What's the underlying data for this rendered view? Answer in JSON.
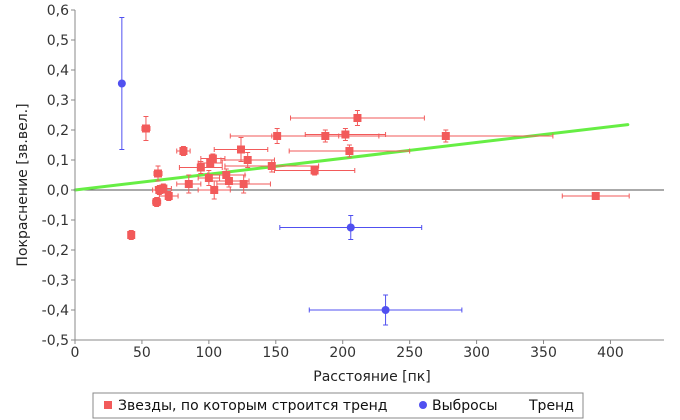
{
  "chart_data": {
    "type": "scatter",
    "title": "",
    "xlabel": "Расстояние [пк]",
    "ylabel": "Покраснение [зв.вел.]",
    "xlim": [
      0,
      440
    ],
    "ylim": [
      -0.5,
      0.6
    ],
    "xticks": [
      "0",
      "50",
      "100",
      "150",
      "200",
      "250",
      "300",
      "350",
      "400"
    ],
    "yticks": [
      "-0,5",
      "-0,4",
      "-0,3",
      "-0,2",
      "-0,1",
      "0,0",
      "0,1",
      "0,2",
      "0,3",
      "0,4",
      "0,5",
      "0,6"
    ],
    "grid": false,
    "zero_line": true,
    "legend_position": "bottom",
    "series": [
      {
        "name": "Звезды, по которым строится тренд",
        "marker": "square",
        "color": "#f25a5a",
        "points": [
          {
            "x": 42,
            "y": -0.15,
            "xerr": 1,
            "yerr": 0.015
          },
          {
            "x": 53,
            "y": 0.205,
            "xerr": 3,
            "yerr": 0.04
          },
          {
            "x": 61,
            "y": -0.04,
            "xerr": 3,
            "yerr": 0.015
          },
          {
            "x": 62,
            "y": 0.055,
            "xerr": 3,
            "yerr": 0.025
          },
          {
            "x": 63,
            "y": 0.0,
            "xerr": 5,
            "yerr": 0.015
          },
          {
            "x": 66,
            "y": 0.005,
            "xerr": 6,
            "yerr": 0.015
          },
          {
            "x": 70,
            "y": -0.02,
            "xerr": 7,
            "yerr": 0.015
          },
          {
            "x": 81,
            "y": 0.13,
            "xerr": 5,
            "yerr": 0.015
          },
          {
            "x": 85,
            "y": 0.02,
            "xerr": 9,
            "yerr": 0.03
          },
          {
            "x": 94,
            "y": 0.075,
            "xerr": 16,
            "yerr": 0.02
          },
          {
            "x": 100,
            "y": 0.04,
            "xerr": 8,
            "yerr": 0.025
          },
          {
            "x": 101,
            "y": 0.09,
            "xerr": 9,
            "yerr": 0.015
          },
          {
            "x": 103,
            "y": 0.105,
            "xerr": 9,
            "yerr": 0.015
          },
          {
            "x": 104,
            "y": 0.0,
            "xerr": 12,
            "yerr": 0.03
          },
          {
            "x": 113,
            "y": 0.05,
            "xerr": 14,
            "yerr": 0.02
          },
          {
            "x": 115,
            "y": 0.03,
            "xerr": 15,
            "yerr": 0.02
          },
          {
            "x": 124,
            "y": 0.135,
            "xerr": 20,
            "yerr": 0.04
          },
          {
            "x": 126,
            "y": 0.02,
            "xerr": 20,
            "yerr": 0.03
          },
          {
            "x": 129,
            "y": 0.1,
            "xerr": 20,
            "yerr": 0.025
          },
          {
            "x": 147,
            "y": 0.08,
            "xerr": 35,
            "yerr": 0.02
          },
          {
            "x": 151,
            "y": 0.18,
            "xerr": 35,
            "yerr": 0.025
          },
          {
            "x": 179,
            "y": 0.065,
            "xerr": 30,
            "yerr": 0.015
          },
          {
            "x": 187,
            "y": 0.18,
            "xerr": 40,
            "yerr": 0.02
          },
          {
            "x": 202,
            "y": 0.185,
            "xerr": 30,
            "yerr": 0.02
          },
          {
            "x": 205,
            "y": 0.13,
            "xerr": 45,
            "yerr": 0.02
          },
          {
            "x": 211,
            "y": 0.24,
            "xerr": 50,
            "yerr": 0.025
          },
          {
            "x": 277,
            "y": 0.18,
            "xerr": 80,
            "yerr": 0.02
          },
          {
            "x": 389,
            "y": -0.02,
            "xerr": 25,
            "yerr": 0.01
          }
        ]
      },
      {
        "name": "Выбросы",
        "marker": "circle",
        "color": "#5050f0",
        "points": [
          {
            "x": 35,
            "y": 0.355,
            "xerr": 1,
            "yerr": 0.22
          },
          {
            "x": 206,
            "y": -0.125,
            "xerr": 53,
            "yerr": 0.04
          },
          {
            "x": 232,
            "y": -0.4,
            "xerr": 57,
            "yerr": 0.05
          }
        ]
      },
      {
        "name": "Тренд",
        "type": "line",
        "color": "#66ee44",
        "x": [
          0,
          413
        ],
        "y": [
          0.0,
          0.218
        ]
      }
    ]
  }
}
